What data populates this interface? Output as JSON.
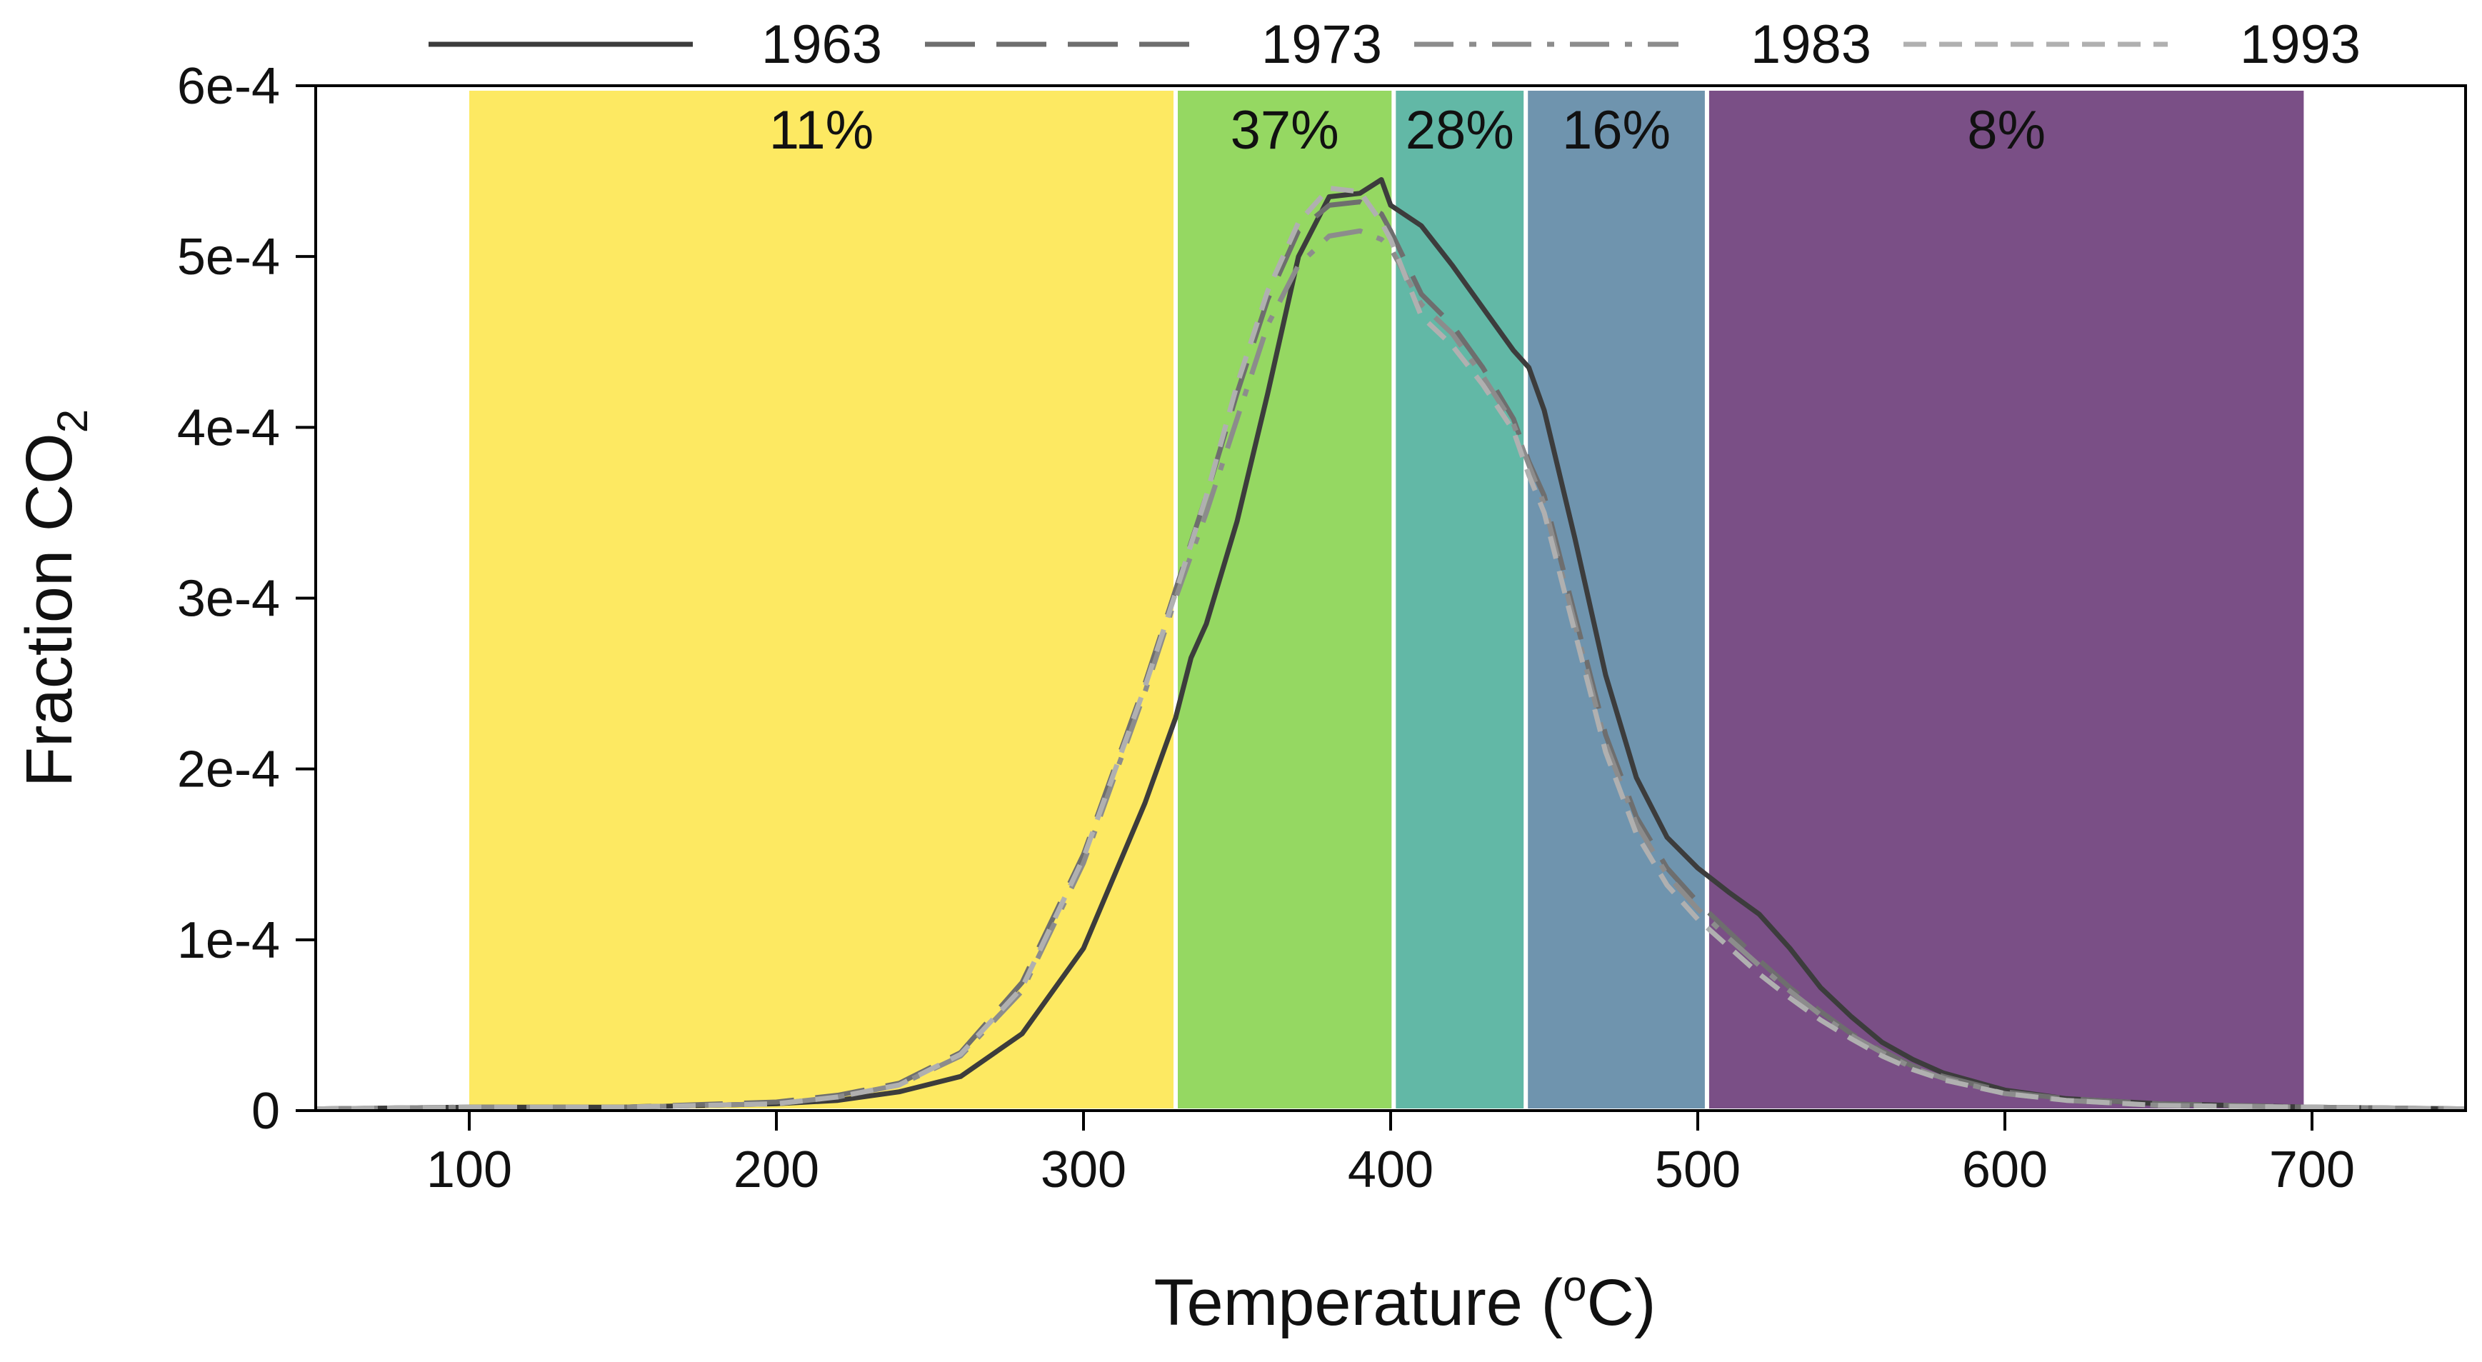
{
  "chart_data": {
    "type": "line",
    "title": "",
    "xlabel": "Temperature (",
    "xlabel_sup": "o",
    "xlabel_suffix": "C)",
    "ylabel": "Fraction CO",
    "ylabel_sub": "2",
    "xlim": [
      50,
      750
    ],
    "ylim": [
      0,
      0.0006
    ],
    "x_ticks": [
      100,
      200,
      300,
      400,
      500,
      600,
      700
    ],
    "x_tick_labels": [
      "100",
      "200",
      "300",
      "400",
      "500",
      "600",
      "700"
    ],
    "y_ticks": [
      0,
      0.0001,
      0.0002,
      0.0003,
      0.0004,
      0.0005,
      0.0006
    ],
    "y_tick_labels": [
      "0",
      "1e-4",
      "2e-4",
      "3e-4",
      "4e-4",
      "5e-4",
      "6e-4"
    ],
    "grid": false,
    "legend_position": "top",
    "bands": [
      {
        "x0": 100,
        "x1": 330,
        "label": "11%",
        "color": "#fde962"
      },
      {
        "x0": 330,
        "x1": 401,
        "label": "37%",
        "color": "#95d862"
      },
      {
        "x0": 401,
        "x1": 444,
        "label": "28%",
        "color": "#62b8a6"
      },
      {
        "x0": 444,
        "x1": 503,
        "label": "16%",
        "color": "#6f94ae"
      },
      {
        "x0": 503,
        "x1": 698,
        "label": "8%",
        "color": "#7a4f86"
      }
    ],
    "series": [
      {
        "name": "1963",
        "color": "#3c3c3c",
        "dash": "solid",
        "x": [
          50,
          100,
          150,
          200,
          220,
          240,
          260,
          280,
          300,
          320,
          330,
          335,
          340,
          350,
          360,
          370,
          380,
          390,
          397,
          400,
          410,
          420,
          430,
          440,
          445,
          450,
          460,
          470,
          480,
          490,
          500,
          510,
          520,
          530,
          540,
          550,
          560,
          570,
          580,
          600,
          620,
          650,
          700,
          750
        ],
        "y": [
          1e-06,
          2e-06,
          2e-06,
          4e-06,
          6e-06,
          1.1e-05,
          2e-05,
          4.5e-05,
          9.5e-05,
          0.00018,
          0.00023,
          0.000265,
          0.000285,
          0.000345,
          0.00042,
          0.0005,
          0.000535,
          0.000537,
          0.000545,
          0.00053,
          0.000518,
          0.000495,
          0.00047,
          0.000445,
          0.000435,
          0.00041,
          0.000335,
          0.000255,
          0.000195,
          0.00016,
          0.000142,
          0.000128,
          0.000115,
          9.5e-05,
          7.2e-05,
          5.5e-05,
          4e-05,
          3e-05,
          2.2e-05,
          1.2e-05,
          7e-06,
          4e-06,
          2e-06,
          1e-06
        ]
      },
      {
        "name": "1973",
        "color": "#6e6e6e",
        "dash": "long-dash",
        "x": [
          50,
          100,
          150,
          200,
          220,
          240,
          260,
          280,
          300,
          320,
          330,
          340,
          350,
          360,
          370,
          380,
          390,
          397,
          400,
          410,
          420,
          430,
          440,
          445,
          450,
          460,
          470,
          480,
          490,
          500,
          510,
          520,
          530,
          540,
          550,
          560,
          570,
          580,
          600,
          620,
          650,
          700,
          750
        ],
        "y": [
          1e-06,
          2e-06,
          2e-06,
          5e-06,
          9e-06,
          1.6e-05,
          3.4e-05,
          7.5e-05,
          0.00015,
          0.00025,
          0.000305,
          0.00036,
          0.00042,
          0.000475,
          0.000515,
          0.00053,
          0.000532,
          0.000525,
          0.000515,
          0.000478,
          0.00046,
          0.000435,
          0.000405,
          0.00038,
          0.00036,
          0.00029,
          0.00022,
          0.000172,
          0.000142,
          0.000122,
          0.000105,
          8.8e-05,
          7.2e-05,
          5.8e-05,
          4.5e-05,
          3.5e-05,
          2.6e-05,
          2e-05,
          1.1e-05,
          7e-06,
          4e-06,
          2e-06,
          1e-06
        ]
      },
      {
        "name": "1983",
        "color": "#8c8c8c",
        "dash": "dash-dot",
        "x": [
          50,
          100,
          150,
          200,
          220,
          240,
          260,
          280,
          300,
          320,
          330,
          340,
          350,
          360,
          370,
          380,
          390,
          397,
          400,
          410,
          420,
          430,
          440,
          445,
          450,
          460,
          470,
          480,
          490,
          500,
          510,
          520,
          530,
          540,
          550,
          560,
          570,
          580,
          600,
          620,
          650,
          700,
          750
        ],
        "y": [
          1e-06,
          2e-06,
          2e-06,
          4e-06,
          8e-06,
          1.5e-05,
          3.2e-05,
          7e-05,
          0.000145,
          0.000245,
          0.0003,
          0.00035,
          0.000405,
          0.00046,
          0.000495,
          0.000512,
          0.000515,
          0.00051,
          0.000505,
          0.000472,
          0.000455,
          0.00043,
          0.000402,
          0.000378,
          0.000355,
          0.000285,
          0.000215,
          0.000168,
          0.000138,
          0.000118,
          0.000101,
          8.5e-05,
          7e-05,
          5.6e-05,
          4.4e-05,
          3.4e-05,
          2.5e-05,
          1.9e-05,
          1e-05,
          6e-06,
          3e-06,
          2e-06,
          1e-06
        ]
      },
      {
        "name": "1993",
        "color": "#b0b0b0",
        "dash": "short-dash",
        "x": [
          50,
          100,
          150,
          200,
          220,
          240,
          260,
          280,
          300,
          320,
          330,
          340,
          350,
          360,
          370,
          380,
          390,
          397,
          400,
          410,
          420,
          430,
          440,
          445,
          450,
          460,
          470,
          480,
          490,
          500,
          510,
          520,
          530,
          540,
          550,
          560,
          570,
          580,
          600,
          620,
          650,
          700,
          750
        ],
        "y": [
          1e-06,
          2e-06,
          2e-06,
          4e-06,
          8e-06,
          1.5e-05,
          3.3e-05,
          7.2e-05,
          0.000148,
          0.000248,
          0.000303,
          0.00036,
          0.000425,
          0.00048,
          0.00052,
          0.00054,
          0.000538,
          0.00052,
          0.00051,
          0.000465,
          0.000448,
          0.000425,
          0.000398,
          0.000372,
          0.00035,
          0.00028,
          0.00021,
          0.000162,
          0.000132,
          0.000112,
          9.6e-05,
          8e-05,
          6.6e-05,
          5.3e-05,
          4.2e-05,
          3.2e-05,
          2.4e-05,
          1.8e-05,
          1e-05,
          6e-06,
          3e-06,
          2e-06,
          1e-06
        ]
      }
    ]
  }
}
